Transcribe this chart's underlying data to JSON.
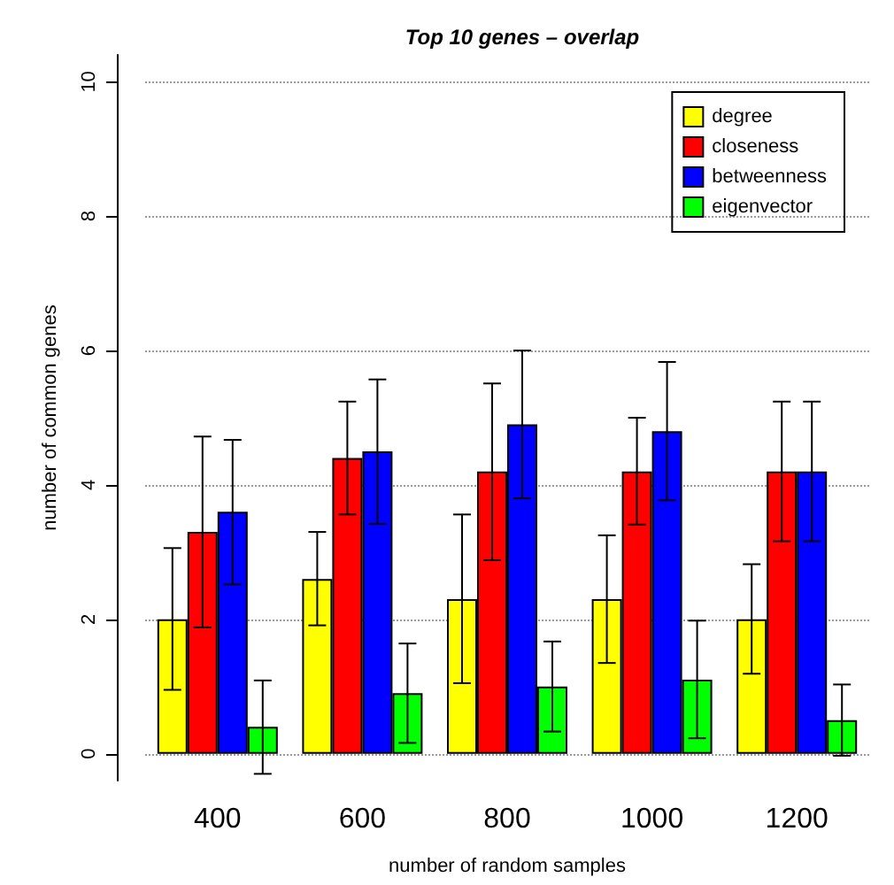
{
  "chart_data": {
    "type": "bar",
    "title": "Top 10 genes – overlap",
    "xlabel": "number of random samples",
    "ylabel": "number of common genes",
    "categories": [
      "400",
      "600",
      "800",
      "1000",
      "1200"
    ],
    "series": [
      {
        "name": "degree",
        "color": "#ffff00",
        "values": [
          2.0,
          2.6,
          2.3,
          2.3,
          2.0
        ],
        "errors": [
          [
            0.95,
            3.06
          ],
          [
            1.91,
            3.3
          ],
          [
            1.05,
            3.56
          ],
          [
            1.35,
            3.25
          ],
          [
            1.19,
            2.82
          ]
        ]
      },
      {
        "name": "closeness",
        "color": "#ff0000",
        "values": [
          3.3,
          4.4,
          4.2,
          4.2,
          4.2
        ],
        "errors": [
          [
            1.88,
            4.72
          ],
          [
            3.56,
            5.24
          ],
          [
            2.88,
            5.51
          ],
          [
            3.41,
            5.0
          ],
          [
            3.16,
            5.24
          ]
        ]
      },
      {
        "name": "betweenness",
        "color": "#0000ff",
        "values": [
          3.6,
          4.5,
          4.9,
          4.8,
          4.2
        ],
        "errors": [
          [
            2.52,
            4.67
          ],
          [
            3.42,
            5.57
          ],
          [
            3.8,
            6.0
          ],
          [
            3.77,
            5.83
          ],
          [
            3.16,
            5.24
          ]
        ]
      },
      {
        "name": "eigenvector",
        "color": "#00ff00",
        "values": [
          0.4,
          0.9,
          1.0,
          1.1,
          0.5
        ],
        "errors": [
          [
            -0.3,
            1.09
          ],
          [
            0.16,
            1.64
          ],
          [
            0.33,
            1.67
          ],
          [
            0.23,
            1.98
          ],
          [
            -0.03,
            1.03
          ]
        ]
      }
    ],
    "ylim": [
      -0.4,
      10.4
    ],
    "yticks": [
      0,
      2,
      4,
      6,
      8,
      10
    ],
    "grid": "y",
    "legend": "top right"
  }
}
